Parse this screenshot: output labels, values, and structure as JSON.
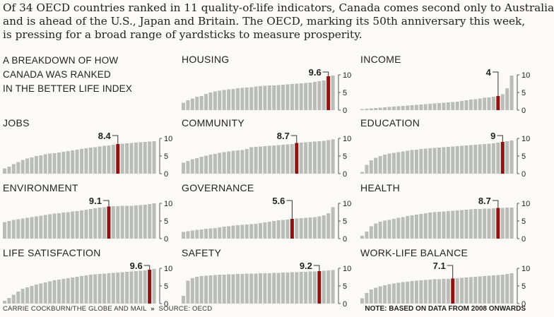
{
  "headline": {
    "lines": [
      "Of 34 OECD countries ranked in 11 quality-of-life indicators, Canada comes second only to Australia",
      "and is ahead of the U.S., Japan and Britain. The OECD, marking its 50th anniversary this week,",
      "is pressing for a broad range of yardsticks to measure prosperity."
    ]
  },
  "intro": {
    "lines": [
      "A BREAKDOWN OF HOW",
      "CANADA WAS RANKED",
      "IN THE BETTER LIFE INDEX"
    ]
  },
  "footer": {
    "credit": "CARRIE COCKBURN/THE GLOBE AND MAIL",
    "separator": "»",
    "source": "SOURCE: OECD",
    "note": "NOTE: BASED ON DATA FROM 2008 ONWARDS"
  },
  "colors": {
    "bar": "#b9bcb7",
    "highlight": "#8e1414",
    "axis": "#555555",
    "text": "#222222"
  },
  "chart_data": [
    {
      "type": "bar",
      "title": "HOUSING",
      "label": "9.6",
      "highlight_index": 32,
      "ylim": [
        0,
        10
      ],
      "yticks": [
        "0",
        "5",
        "10"
      ],
      "values": [
        2.1,
        2.8,
        3.3,
        3.8,
        4.0,
        4.6,
        5.0,
        5.3,
        5.5,
        5.7,
        5.9,
        6.0,
        6.2,
        6.3,
        6.4,
        6.5,
        6.7,
        6.8,
        6.9,
        7.0,
        7.0,
        7.1,
        7.2,
        7.3,
        7.4,
        7.5,
        7.6,
        7.7,
        7.8,
        8.0,
        8.2,
        8.4,
        9.6,
        9.8
      ]
    },
    {
      "type": "bar",
      "title": "INCOME",
      "label": "4",
      "highlight_index": 30,
      "ylim": [
        0,
        10
      ],
      "yticks": [
        "0",
        "5",
        "10"
      ],
      "values": [
        0.3,
        0.4,
        0.5,
        0.6,
        0.7,
        0.8,
        0.9,
        1.0,
        1.1,
        1.2,
        1.3,
        1.4,
        1.5,
        1.6,
        1.7,
        1.8,
        1.9,
        2.0,
        2.1,
        2.2,
        2.3,
        2.4,
        2.6,
        2.8,
        3.0,
        3.1,
        3.3,
        3.5,
        3.6,
        3.8,
        4.0,
        4.5,
        6.2,
        9.8
      ]
    },
    {
      "type": "bar",
      "title": "JOBS",
      "label": "8.4",
      "highlight_index": 25,
      "ylim": [
        0,
        10
      ],
      "yticks": [
        "0",
        "5",
        "10"
      ],
      "values": [
        1.5,
        2.0,
        2.7,
        3.3,
        3.9,
        4.3,
        4.6,
        5.0,
        5.2,
        5.5,
        5.7,
        5.8,
        6.0,
        6.2,
        6.4,
        6.6,
        6.8,
        7.0,
        7.2,
        7.4,
        7.5,
        7.7,
        7.9,
        8.0,
        8.2,
        8.4,
        8.5,
        8.6,
        8.7,
        8.8,
        8.9,
        9.0,
        9.1,
        9.2
      ]
    },
    {
      "type": "bar",
      "title": "COMMUNITY",
      "label": "8.7",
      "highlight_index": 25,
      "ylim": [
        0,
        10
      ],
      "yticks": [
        "0",
        "5",
        "10"
      ],
      "values": [
        3.1,
        3.6,
        4.1,
        4.4,
        4.8,
        5.1,
        5.4,
        5.6,
        5.9,
        6.1,
        6.3,
        6.5,
        6.6,
        6.7,
        7.0,
        7.5,
        7.6,
        7.7,
        7.8,
        7.9,
        8.0,
        8.1,
        8.2,
        8.3,
        8.4,
        8.7,
        8.8,
        8.9,
        9.0,
        9.1,
        9.2,
        9.3,
        9.5,
        9.7
      ]
    },
    {
      "type": "bar",
      "title": "EDUCATION",
      "label": "9",
      "highlight_index": 31,
      "ylim": [
        0,
        10
      ],
      "yticks": [
        "0",
        "5",
        "10"
      ],
      "values": [
        0.5,
        2.5,
        3.8,
        4.5,
        5.0,
        5.4,
        5.7,
        5.9,
        6.1,
        6.3,
        6.5,
        6.7,
        6.8,
        7.0,
        7.1,
        7.2,
        7.3,
        7.4,
        7.5,
        7.6,
        7.7,
        7.8,
        7.9,
        8.0,
        8.1,
        8.2,
        8.3,
        8.4,
        8.5,
        8.6,
        8.8,
        9.0,
        9.2,
        9.4
      ]
    },
    {
      "type": "bar",
      "title": "ENVIRONMENT",
      "label": "9.1",
      "highlight_index": 23,
      "ylim": [
        0,
        10
      ],
      "yticks": [
        "0",
        "5",
        "10"
      ],
      "values": [
        4.7,
        5.0,
        5.3,
        5.5,
        5.7,
        5.9,
        6.1,
        6.3,
        6.5,
        6.7,
        6.9,
        7.1,
        7.2,
        7.4,
        7.5,
        7.7,
        7.8,
        8.0,
        8.2,
        8.4,
        8.6,
        8.8,
        8.9,
        9.1,
        9.2,
        9.2,
        9.3,
        9.3,
        9.3,
        9.4,
        9.5,
        9.6,
        9.8,
        10.0
      ]
    },
    {
      "type": "bar",
      "title": "GOVERNANCE",
      "label": "5.6",
      "highlight_index": 24,
      "ylim": [
        0,
        10
      ],
      "yticks": [
        "0",
        "5",
        "10"
      ],
      "values": [
        1.9,
        2.1,
        2.3,
        2.5,
        2.6,
        2.8,
        2.9,
        3.0,
        3.2,
        3.4,
        3.5,
        3.7,
        3.8,
        3.9,
        4.0,
        4.1,
        4.2,
        4.4,
        4.6,
        4.8,
        5.0,
        5.2,
        5.3,
        5.4,
        5.6,
        5.7,
        5.8,
        5.9,
        6.0,
        6.1,
        6.3,
        6.6,
        7.2,
        8.9
      ]
    },
    {
      "type": "bar",
      "title": "HEALTH",
      "label": "8.7",
      "highlight_index": 30,
      "ylim": [
        0,
        10
      ],
      "yticks": [
        "0",
        "5",
        "10"
      ],
      "values": [
        0.8,
        2.0,
        3.5,
        4.3,
        4.8,
        5.1,
        5.3,
        5.6,
        5.9,
        6.1,
        6.4,
        6.6,
        6.8,
        7.0,
        7.2,
        7.4,
        7.5,
        7.6,
        7.7,
        7.8,
        7.9,
        8.0,
        8.1,
        8.2,
        8.3,
        8.4,
        8.4,
        8.5,
        8.5,
        8.6,
        8.7,
        8.7,
        8.8,
        8.8
      ]
    },
    {
      "type": "bar",
      "title": "LIFE SATISFACTION",
      "label": "9.6",
      "highlight_index": 32,
      "ylim": [
        0,
        10
      ],
      "yticks": [
        "0",
        "5",
        "10"
      ],
      "values": [
        0.8,
        1.6,
        2.5,
        3.4,
        4.2,
        4.6,
        5.0,
        5.4,
        5.7,
        6.0,
        6.3,
        6.6,
        6.8,
        7.0,
        7.2,
        7.4,
        7.6,
        7.8,
        8.0,
        8.2,
        8.3,
        8.4,
        8.5,
        8.6,
        8.7,
        8.8,
        8.9,
        9.0,
        9.1,
        9.2,
        9.3,
        9.4,
        9.6,
        9.8
      ]
    },
    {
      "type": "bar",
      "title": "SAFETY",
      "label": "9.2",
      "highlight_index": 30,
      "ylim": [
        0,
        10
      ],
      "yticks": [
        "0",
        "5",
        "10"
      ],
      "values": [
        2.2,
        6.5,
        7.2,
        7.6,
        7.8,
        7.9,
        8.0,
        8.1,
        8.2,
        8.2,
        8.3,
        8.3,
        8.4,
        8.4,
        8.5,
        8.5,
        8.5,
        8.6,
        8.6,
        8.6,
        8.7,
        8.7,
        8.8,
        8.8,
        8.9,
        8.9,
        9.0,
        9.0,
        9.1,
        9.1,
        9.2,
        9.3,
        9.4,
        9.5
      ]
    },
    {
      "type": "bar",
      "title": "WORK-LIFE BALANCE",
      "label": "7.1",
      "highlight_index": 20,
      "ylim": [
        0,
        10
      ],
      "yticks": [
        "0",
        "5",
        "10"
      ],
      "values": [
        1.5,
        3.0,
        4.0,
        4.5,
        4.9,
        5.2,
        5.5,
        5.7,
        5.9,
        6.1,
        6.2,
        6.4,
        6.5,
        6.6,
        6.7,
        6.8,
        6.9,
        6.9,
        7.0,
        7.0,
        7.1,
        7.2,
        7.3,
        7.4,
        7.5,
        7.6,
        7.7,
        7.8,
        7.9,
        8.0,
        8.1,
        8.2,
        8.4,
        8.6
      ]
    }
  ]
}
